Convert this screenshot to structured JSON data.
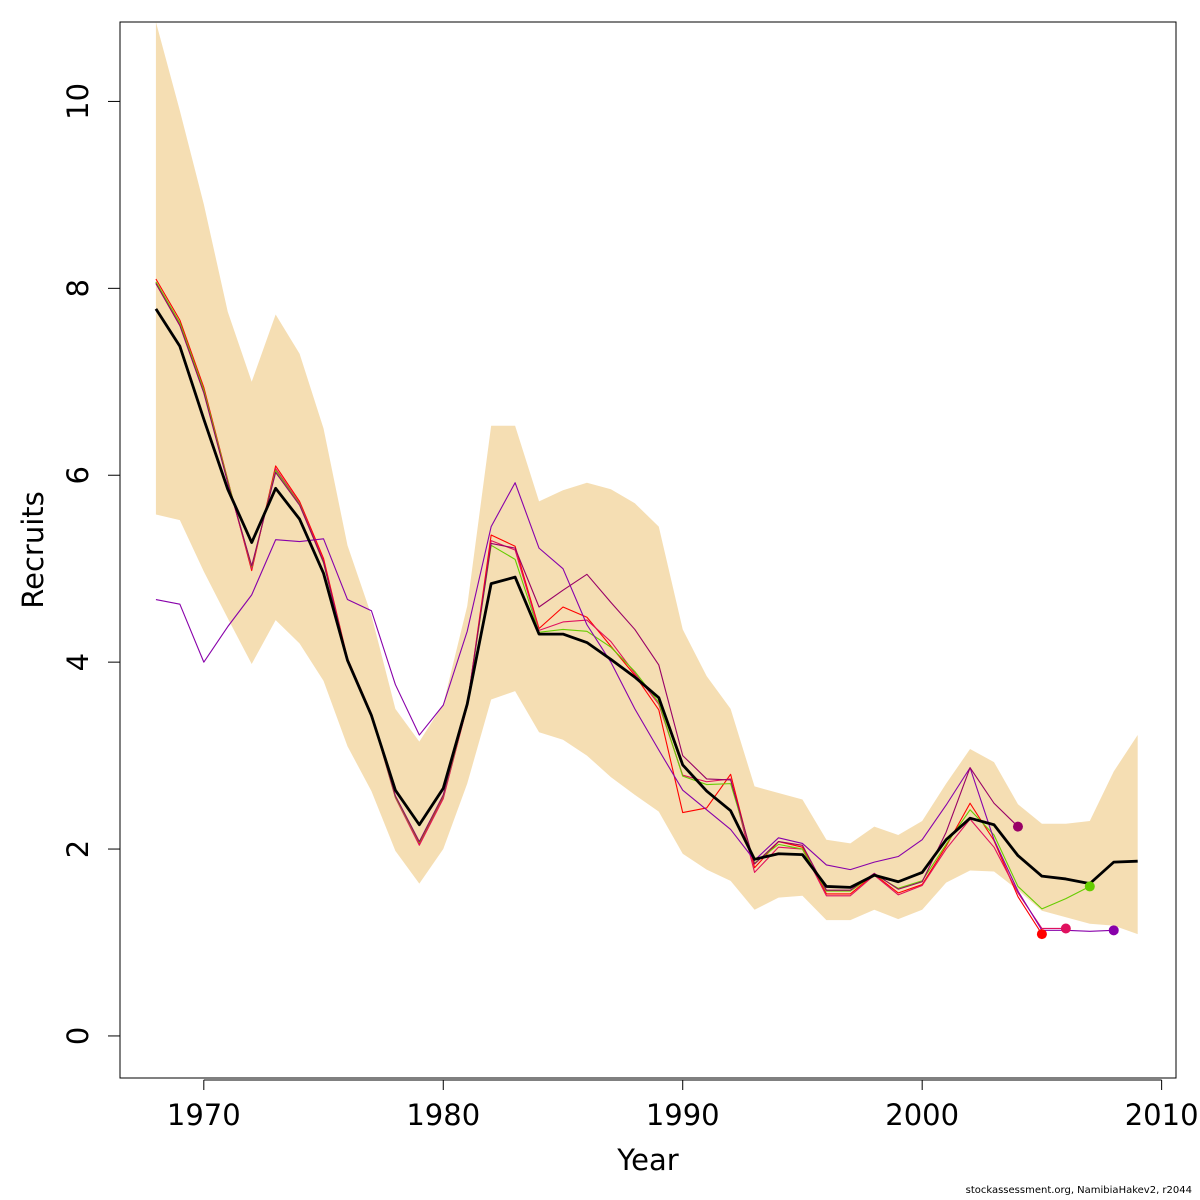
{
  "chart_data": {
    "type": "line",
    "xlabel": "Year",
    "ylabel": "Recruits",
    "xlim": [
      1966.5,
      2010.6
    ],
    "ylim": [
      -0.45,
      10.85
    ],
    "x_ticks": [
      1970,
      1980,
      1990,
      2000,
      2010
    ],
    "x_tick_labels": [
      "1970",
      "1980",
      "1990",
      "2000",
      "2010"
    ],
    "y_ticks": [
      0,
      2,
      4,
      6,
      8,
      10
    ],
    "y_tick_labels": [
      "0",
      "2",
      "4",
      "6",
      "8",
      "10"
    ],
    "grid": false,
    "band": {
      "color": "#F5DEB3",
      "x": [
        1968,
        1969,
        1970,
        1971,
        1972,
        1973,
        1974,
        1975,
        1976,
        1977,
        1978,
        1979,
        1980,
        1981,
        1982,
        1983,
        1984,
        1985,
        1986,
        1987,
        1988,
        1989,
        1990,
        1991,
        1992,
        1993,
        1994,
        1995,
        1996,
        1997,
        1998,
        1999,
        2000,
        2001,
        2002,
        2003,
        2004,
        2005,
        2006,
        2007,
        2008,
        2009
      ],
      "upper": [
        10.85,
        9.9,
        8.9,
        7.75,
        7.0,
        7.72,
        7.3,
        6.5,
        5.25,
        4.5,
        3.5,
        3.15,
        3.55,
        4.6,
        6.53,
        6.53,
        5.72,
        5.84,
        5.92,
        5.85,
        5.7,
        5.45,
        4.35,
        3.85,
        3.5,
        2.67,
        2.6,
        2.53,
        2.1,
        2.06,
        2.24,
        2.15,
        2.3,
        2.7,
        3.07,
        2.93,
        2.48,
        2.27,
        2.27,
        2.3,
        2.83,
        3.22
      ],
      "lower": [
        5.58,
        5.52,
        4.97,
        4.47,
        3.98,
        4.45,
        4.2,
        3.8,
        3.1,
        2.62,
        1.98,
        1.63,
        2.0,
        2.7,
        3.6,
        3.69,
        3.25,
        3.17,
        3.0,
        2.77,
        2.58,
        2.4,
        1.95,
        1.78,
        1.66,
        1.35,
        1.48,
        1.5,
        1.24,
        1.24,
        1.35,
        1.25,
        1.35,
        1.64,
        1.77,
        1.76,
        1.56,
        1.34,
        1.27,
        1.2,
        1.18,
        1.09
      ]
    },
    "series": [
      {
        "color": "#000000",
        "width": 2.8,
        "x": [
          1968,
          1969,
          1970,
          1971,
          1972,
          1973,
          1974,
          1975,
          1976,
          1977,
          1978,
          1979,
          1980,
          1981,
          1982,
          1983,
          1984,
          1985,
          1986,
          1987,
          1988,
          1989,
          1990,
          1991,
          1992,
          1993,
          1994,
          1995,
          1996,
          1997,
          1998,
          1999,
          2000,
          2001,
          2002,
          2003,
          2004,
          2005,
          2006,
          2007,
          2008,
          2009
        ],
        "values": [
          7.78,
          7.38,
          6.6,
          5.85,
          5.28,
          5.86,
          5.53,
          4.95,
          4.02,
          3.43,
          2.63,
          2.26,
          2.65,
          3.55,
          4.84,
          4.91,
          4.3,
          4.3,
          4.21,
          4.03,
          3.84,
          3.62,
          2.9,
          2.62,
          2.41,
          1.89,
          1.95,
          1.94,
          1.6,
          1.59,
          1.72,
          1.65,
          1.75,
          2.1,
          2.33,
          2.26,
          1.93,
          1.71,
          1.68,
          1.63,
          1.86,
          1.87
        ],
        "end_point": false
      },
      {
        "color": "#FF0000",
        "width": 1.1,
        "x": [
          1968,
          1969,
          1970,
          1971,
          1972,
          1973,
          1974,
          1975,
          1976,
          1977,
          1978,
          1979,
          1980,
          1981,
          1982,
          1983,
          1984,
          1985,
          1986,
          1987,
          1988,
          1989,
          1990,
          1991,
          1992,
          1993,
          1994,
          1995,
          1996,
          1997,
          1998,
          1999,
          2000,
          2001,
          2002,
          2003,
          2004,
          2005
        ],
        "values": [
          8.1,
          7.66,
          6.94,
          5.95,
          4.98,
          6.1,
          5.72,
          5.11,
          4.04,
          3.45,
          2.56,
          2.06,
          2.55,
          3.53,
          5.36,
          5.24,
          4.36,
          4.59,
          4.48,
          4.17,
          3.86,
          3.49,
          2.39,
          2.44,
          2.8,
          1.8,
          2.08,
          2.02,
          1.52,
          1.52,
          1.73,
          1.53,
          1.62,
          2.03,
          2.49,
          2.09,
          1.49,
          1.09
        ],
        "end_point": true
      },
      {
        "color": "#E0115F",
        "width": 1.1,
        "x": [
          1968,
          1969,
          1970,
          1971,
          1972,
          1973,
          1974,
          1975,
          1976,
          1977,
          1978,
          1979,
          1980,
          1981,
          1982,
          1983,
          1984,
          1985,
          1986,
          1987,
          1988,
          1989,
          1990,
          1991,
          1992,
          1993,
          1994,
          1995,
          1996,
          1997,
          1998,
          1999,
          2000,
          2001,
          2002,
          2003,
          2004,
          2005,
          2006
        ],
        "values": [
          8.06,
          7.62,
          6.9,
          5.93,
          5.0,
          6.07,
          5.7,
          5.08,
          4.03,
          3.44,
          2.55,
          2.04,
          2.54,
          3.53,
          5.3,
          5.2,
          4.34,
          4.43,
          4.45,
          4.22,
          3.88,
          3.55,
          2.79,
          2.72,
          2.75,
          1.75,
          2.02,
          2.0,
          1.5,
          1.5,
          1.72,
          1.51,
          1.61,
          2.0,
          2.32,
          2.02,
          1.53,
          1.15,
          1.15
        ],
        "end_point": true
      },
      {
        "color": "#66CC00",
        "width": 1.1,
        "x": [
          1968,
          1969,
          1970,
          1971,
          1972,
          1973,
          1974,
          1975,
          1976,
          1977,
          1978,
          1979,
          1980,
          1981,
          1982,
          1983,
          1984,
          1985,
          1986,
          1987,
          1988,
          1989,
          1990,
          1991,
          1992,
          1993,
          1994,
          1995,
          1996,
          1997,
          1998,
          1999,
          2000,
          2001,
          2002,
          2003,
          2004,
          2005,
          2006,
          2007
        ],
        "values": [
          8.07,
          7.63,
          6.91,
          5.94,
          5.02,
          6.05,
          5.69,
          5.06,
          4.03,
          3.44,
          2.56,
          2.07,
          2.57,
          3.54,
          5.25,
          5.1,
          4.32,
          4.35,
          4.33,
          4.16,
          3.9,
          3.57,
          2.78,
          2.69,
          2.7,
          1.85,
          2.05,
          2.0,
          1.55,
          1.55,
          1.73,
          1.58,
          1.66,
          2.05,
          2.42,
          2.15,
          1.6,
          1.36,
          1.47,
          1.6
        ],
        "end_point": true
      },
      {
        "color": "#8800AA",
        "width": 1.1,
        "x": [
          1968,
          1969,
          1970,
          1971,
          1972,
          1973,
          1974,
          1975,
          1976,
          1977,
          1978,
          1979,
          1980,
          1981,
          1982,
          1983,
          1984,
          1985,
          1986,
          1987,
          1988,
          1989,
          1990,
          1991,
          1992,
          1993,
          1994,
          1995,
          1996,
          1997,
          1998,
          1999,
          2000,
          2001,
          2002,
          2003,
          2004,
          2005,
          2006,
          2007,
          2008
        ],
        "values": [
          4.67,
          4.62,
          4.0,
          4.38,
          4.72,
          5.31,
          5.29,
          5.32,
          4.67,
          4.55,
          3.76,
          3.22,
          3.54,
          4.33,
          5.45,
          5.92,
          5.22,
          5.0,
          4.4,
          4.0,
          3.5,
          3.06,
          2.63,
          2.42,
          2.21,
          1.88,
          2.12,
          2.06,
          1.83,
          1.78,
          1.86,
          1.92,
          2.1,
          2.47,
          2.87,
          2.1,
          1.55,
          1.13,
          1.13,
          1.12,
          1.13
        ],
        "end_point": true
      },
      {
        "color": "#990066",
        "width": 1.1,
        "x": [
          1968,
          1969,
          1970,
          1971,
          1972,
          1973,
          1974,
          1975,
          1976,
          1977,
          1978,
          1979,
          1980,
          1981,
          1982,
          1983,
          1984,
          1985,
          1986,
          1987,
          1988,
          1989,
          1990,
          1991,
          1992,
          1993,
          1994,
          1995,
          1996,
          1997,
          1998,
          1999,
          2000,
          2001,
          2002,
          2003,
          2004
        ],
        "values": [
          8.05,
          7.6,
          6.88,
          5.92,
          5.03,
          6.03,
          5.68,
          5.07,
          4.03,
          3.44,
          2.57,
          2.08,
          2.58,
          3.55,
          5.27,
          5.22,
          4.59,
          4.77,
          4.94,
          4.64,
          4.35,
          3.97,
          3.0,
          2.75,
          2.74,
          1.84,
          2.08,
          2.04,
          1.56,
          1.56,
          1.74,
          1.57,
          1.65,
          2.18,
          2.87,
          2.49,
          2.24
        ],
        "end_point": true
      }
    ]
  },
  "footer": "stockassessment.org, NamibiaHakev2, r2044"
}
